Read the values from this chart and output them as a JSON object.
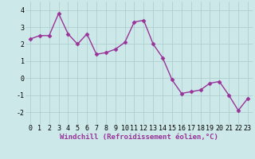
{
  "x": [
    0,
    1,
    2,
    3,
    4,
    5,
    6,
    7,
    8,
    9,
    10,
    11,
    12,
    13,
    14,
    15,
    16,
    17,
    18,
    19,
    20,
    21,
    22,
    23
  ],
  "y": [
    2.3,
    2.5,
    2.5,
    3.8,
    2.6,
    2.0,
    2.6,
    1.4,
    1.5,
    1.7,
    2.1,
    3.3,
    3.4,
    2.0,
    1.2,
    -0.1,
    -0.9,
    -0.8,
    -0.7,
    -0.3,
    -0.2,
    -1.0,
    -1.9,
    -1.2
  ],
  "line_color": "#993399",
  "marker": "D",
  "marker_size": 2.5,
  "bg_color": "#cde8e8",
  "grid_color": "#aacccc",
  "xlabel": "Windchill (Refroidissement éolien,°C)",
  "ylim": [
    -2.7,
    4.5
  ],
  "yticks": [
    -2,
    -1,
    0,
    1,
    2,
    3,
    4
  ],
  "xticks": [
    0,
    1,
    2,
    3,
    4,
    5,
    6,
    7,
    8,
    9,
    10,
    11,
    12,
    13,
    14,
    15,
    16,
    17,
    18,
    19,
    20,
    21,
    22,
    23
  ],
  "xlabel_fontsize": 6.5,
  "tick_fontsize": 6,
  "line_width": 1.0
}
